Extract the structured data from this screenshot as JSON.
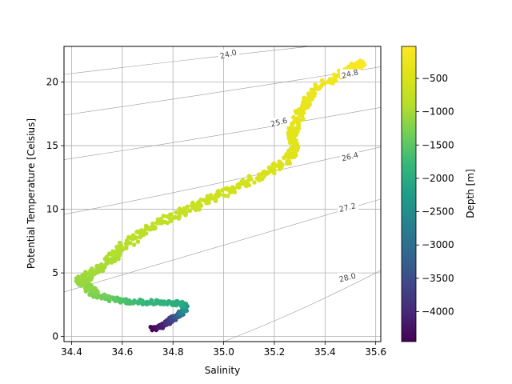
{
  "chart_data": {
    "type": "scatter",
    "title": "",
    "xlabel": "Salinity",
    "ylabel": "Potential Temperature [Celsius]",
    "xlim": [
      34.37,
      35.62
    ],
    "ylim": [
      -0.4,
      22.8
    ],
    "xticks": [
      34.4,
      34.6,
      34.8,
      35.0,
      35.2,
      35.4,
      35.6
    ],
    "xtick_labels": [
      "34.4",
      "34.6",
      "34.8",
      "35.0",
      "35.2",
      "35.4",
      "35.6"
    ],
    "yticks": [
      0,
      5,
      10,
      15,
      20
    ],
    "ytick_labels": [
      "0",
      "5",
      "10",
      "15",
      "20"
    ],
    "grid": true,
    "colorbar": {
      "label": "Depth [m]",
      "colormap": "viridis",
      "range": [
        -4450,
        -20
      ],
      "ticks": [
        -500,
        -1000,
        -1500,
        -2000,
        -2500,
        -3000,
        -3500,
        -4000
      ],
      "tick_labels": [
        "−500",
        "−1000",
        "−1500",
        "−2000",
        "−2500",
        "−3000",
        "−3500",
        "−4000"
      ]
    },
    "density_contours": [
      {
        "label": "24.0",
        "points": [
          [
            34.37,
            20.6
          ],
          [
            35.0,
            22.1
          ],
          [
            35.62,
            23.4
          ]
        ],
        "label_at": [
          35.02,
          22.05
        ]
      },
      {
        "label": "24.8",
        "points": [
          [
            34.37,
            17.4
          ],
          [
            35.0,
            19.2
          ],
          [
            35.62,
            21.2
          ]
        ],
        "label_at": [
          35.5,
          20.5
        ]
      },
      {
        "label": "25.6",
        "points": [
          [
            34.37,
            13.9
          ],
          [
            35.0,
            15.8
          ],
          [
            35.62,
            18.0
          ]
        ],
        "label_at": [
          35.22,
          16.7
        ]
      },
      {
        "label": "26.4",
        "points": [
          [
            34.37,
            9.6
          ],
          [
            35.0,
            12.0
          ],
          [
            35.62,
            14.9
          ]
        ],
        "label_at": [
          35.5,
          14.0
        ]
      },
      {
        "label": "27.2",
        "points": [
          [
            34.37,
            3.5
          ],
          [
            35.0,
            7.2
          ],
          [
            35.62,
            10.8
          ]
        ],
        "label_at": [
          35.49,
          10.0
        ]
      },
      {
        "label": "28.0",
        "points": [
          [
            35.0,
            -0.4
          ],
          [
            35.3,
            1.9
          ],
          [
            35.62,
            5.2
          ]
        ],
        "label_at": [
          35.49,
          4.5
        ]
      }
    ],
    "series": [
      {
        "points": [
          [
            34.72,
            0.6,
            -4400
          ],
          [
            34.75,
            0.8,
            -4200
          ],
          [
            34.78,
            1.1,
            -3900
          ],
          [
            34.8,
            1.4,
            -3600
          ],
          [
            34.82,
            1.7,
            -3200
          ],
          [
            34.84,
            2.0,
            -2700
          ],
          [
            34.85,
            2.3,
            -2300
          ],
          [
            34.83,
            2.6,
            -2000
          ],
          [
            34.76,
            2.7,
            -1900
          ],
          [
            34.68,
            2.7,
            -1800
          ],
          [
            34.6,
            2.8,
            -1600
          ],
          [
            34.54,
            3.0,
            -1400
          ],
          [
            34.49,
            3.4,
            -1250
          ],
          [
            34.46,
            3.9,
            -1150
          ],
          [
            34.44,
            4.4,
            -1100
          ],
          [
            34.47,
            4.9,
            -1050
          ],
          [
            34.52,
            5.5,
            -1000
          ],
          [
            34.56,
            6.2,
            -950
          ],
          [
            34.6,
            7.0,
            -900
          ],
          [
            34.66,
            7.9,
            -850
          ],
          [
            34.72,
            8.7,
            -800
          ],
          [
            34.8,
            9.5,
            -750
          ],
          [
            34.88,
            10.2,
            -700
          ],
          [
            34.96,
            10.9,
            -650
          ],
          [
            35.04,
            11.6,
            -600
          ],
          [
            35.12,
            12.4,
            -550
          ],
          [
            35.2,
            13.2,
            -500
          ],
          [
            35.26,
            14.0,
            -450
          ],
          [
            35.28,
            14.8,
            -420
          ],
          [
            35.27,
            15.6,
            -390
          ],
          [
            35.28,
            16.5,
            -360
          ],
          [
            35.3,
            17.5,
            -330
          ],
          [
            35.33,
            18.5,
            -300
          ],
          [
            35.37,
            19.5,
            -250
          ],
          [
            35.44,
            20.4,
            -180
          ],
          [
            35.52,
            21.2,
            -100
          ],
          [
            35.55,
            21.5,
            -40
          ]
        ]
      }
    ]
  }
}
